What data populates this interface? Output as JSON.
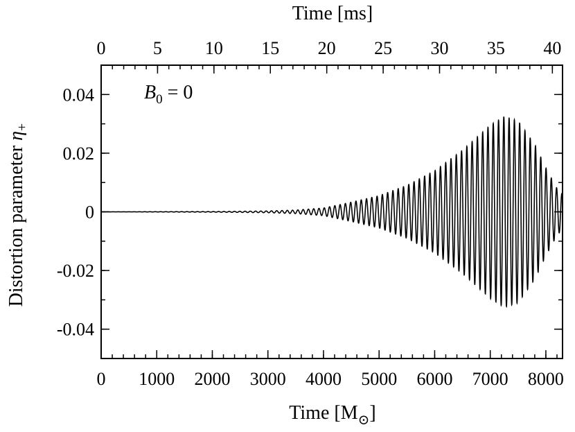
{
  "chart_data": {
    "type": "line",
    "title": "",
    "xlabel": {
      "prefix": "Time [M",
      "sub": "⊙",
      "suffix": "]"
    },
    "x2label": "Time [ms]",
    "ylabel": {
      "main": "Distortion parameter ",
      "symbol": "η",
      "sub": "+"
    },
    "xlim": [
      0,
      8300
    ],
    "x2lim": [
      0,
      40.9
    ],
    "ylim": [
      -0.05,
      0.05
    ],
    "x_ticks": [
      0,
      1000,
      2000,
      3000,
      4000,
      5000,
      6000,
      7000,
      8000
    ],
    "x_tick_labels": [
      "0",
      "1000",
      "2000",
      "3000",
      "4000",
      "5000",
      "6000",
      "7000",
      "8000"
    ],
    "x_minor_step": 200,
    "x2_ticks": [
      0,
      5,
      10,
      15,
      20,
      25,
      30,
      35,
      40
    ],
    "x2_tick_labels": [
      "0",
      "5",
      "10",
      "15",
      "20",
      "25",
      "30",
      "35",
      "40"
    ],
    "x2_minor_step": 1,
    "y_ticks": [
      -0.04,
      -0.02,
      0,
      0.02,
      0.04
    ],
    "y_tick_labels": [
      "-0.04",
      "-0.02",
      "0",
      "0.02",
      "0.04"
    ],
    "y_minor_step": 0.01,
    "grid": false,
    "annotation": {
      "var": "B",
      "sub": "0",
      "rest": " = 0"
    },
    "series": [
      {
        "style": "oscillation",
        "color": "#000000",
        "envelope": {
          "t": [
            0,
            2000,
            3000,
            3500,
            4000,
            4500,
            5000,
            5500,
            6000,
            6500,
            7000,
            7250,
            7500,
            7800,
            8000,
            8200,
            8300
          ],
          "amplitude": [
            0.0,
            0.0001,
            0.0003,
            0.0006,
            0.0013,
            0.0033,
            0.0055,
            0.009,
            0.014,
            0.021,
            0.0295,
            0.0325,
            0.031,
            0.023,
            0.015,
            0.008,
            0.006
          ]
        },
        "period": 95
      }
    ]
  }
}
